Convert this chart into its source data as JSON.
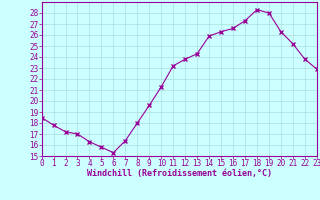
{
  "x": [
    0,
    1,
    2,
    3,
    4,
    5,
    6,
    7,
    8,
    9,
    10,
    11,
    12,
    13,
    14,
    15,
    16,
    17,
    18,
    19,
    20,
    21,
    22,
    23
  ],
  "y": [
    18.5,
    17.8,
    17.2,
    17.0,
    16.3,
    15.8,
    15.3,
    16.4,
    18.0,
    19.6,
    21.3,
    23.2,
    23.8,
    24.3,
    25.9,
    26.3,
    26.6,
    27.3,
    28.3,
    28.0,
    26.3,
    25.2,
    23.8,
    22.9
  ],
  "line_color": "#990099",
  "marker": "x",
  "marker_size": 3,
  "marker_color": "#990099",
  "bg_color": "#ccffff",
  "grid_color": "#aadddd",
  "xlabel": "Windchill (Refroidissement éolien,°C)",
  "xlabel_color": "#990099",
  "tick_color": "#990099",
  "axis_line_color": "#990099",
  "ylim": [
    15,
    29
  ],
  "yticks": [
    15,
    16,
    17,
    18,
    19,
    20,
    21,
    22,
    23,
    24,
    25,
    26,
    27,
    28
  ],
  "xticks": [
    0,
    1,
    2,
    3,
    4,
    5,
    6,
    7,
    8,
    9,
    10,
    11,
    12,
    13,
    14,
    15,
    16,
    17,
    18,
    19,
    20,
    21,
    22,
    23
  ],
  "xlim": [
    0,
    23
  ],
  "font_family": "monospace",
  "tick_fontsize": 5.5,
  "xlabel_fontsize": 6.0
}
